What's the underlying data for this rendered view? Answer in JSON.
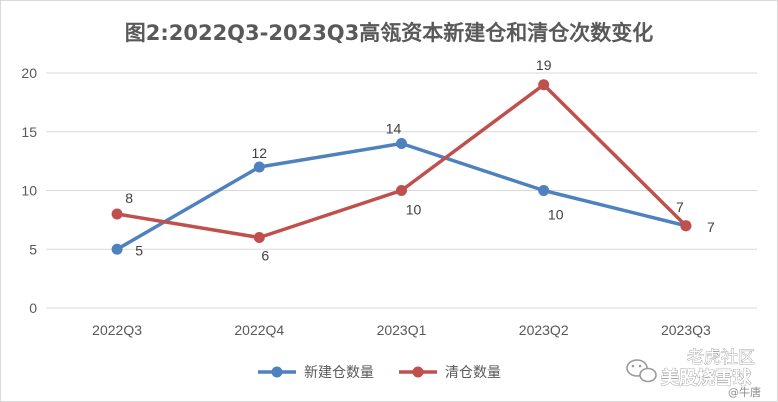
{
  "chart_data": {
    "type": "line",
    "title": "图2:2022Q3-2023Q3高瓴资本新建仓和清仓次数变化",
    "categories": [
      "2022Q3",
      "2022Q4",
      "2023Q1",
      "2023Q2",
      "2023Q3"
    ],
    "series": [
      {
        "name": "新建仓数量",
        "values": [
          5,
          12,
          14,
          10,
          7
        ],
        "color": "#4e81bd"
      },
      {
        "name": "清仓数量",
        "values": [
          8,
          6,
          10,
          19,
          7
        ],
        "color": "#c0504d"
      }
    ],
    "ylim": [
      0,
      20
    ],
    "yticks": [
      0,
      5,
      10,
      15,
      20
    ],
    "grid": true,
    "legend": "bottom"
  },
  "watermark": {
    "line1": "老虎社区",
    "line2": "美股烧雪球",
    "credit": "@牛唐",
    "icon": "wechat-icon"
  }
}
